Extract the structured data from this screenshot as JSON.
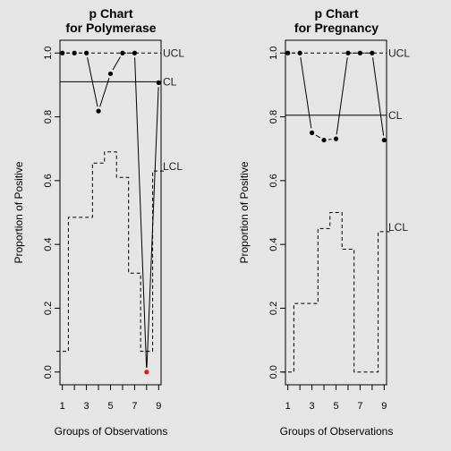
{
  "chart_data": [
    {
      "type": "line",
      "chart_kind": "p-chart",
      "title_line1": "p Chart",
      "title_line2": "for Polymerase",
      "xlabel": "Groups of Observations",
      "ylabel": "Proportion of Positive",
      "x_ticks": [
        1,
        3,
        5,
        7,
        9
      ],
      "y_ticks": [
        "0.0",
        "0.2",
        "0.4",
        "0.6",
        "0.8",
        "1.0"
      ],
      "xlim": [
        0.8,
        9.2
      ],
      "ylim": [
        -0.04,
        1.04
      ],
      "x": [
        1,
        2,
        3,
        4,
        5,
        6,
        7,
        8,
        9
      ],
      "p": [
        1.0,
        1.0,
        1.0,
        0.818,
        0.935,
        1.0,
        1.0,
        0.0,
        0.907
      ],
      "out_of_control": [
        8
      ],
      "CL": 0.91,
      "UCL": 1.0,
      "LCL": [
        0.065,
        0.485,
        0.485,
        0.655,
        0.69,
        0.61,
        0.31,
        0.065,
        0.63
      ],
      "labels": {
        "ucl": "UCL",
        "cl": "CL",
        "lcl": "LCL"
      },
      "colors": {
        "point": "#000000",
        "out_of_control": "#e0171b"
      }
    },
    {
      "type": "line",
      "chart_kind": "p-chart",
      "title_line1": "p Chart",
      "title_line2": "for Pregnancy",
      "xlabel": "Groups of Observations",
      "ylabel": "Proportion of Positive",
      "x_ticks": [
        1,
        3,
        5,
        7,
        9
      ],
      "y_ticks": [
        "0.0",
        "0.2",
        "0.4",
        "0.6",
        "0.8",
        "1.0"
      ],
      "xlim": [
        0.8,
        9.2
      ],
      "ylim": [
        -0.04,
        1.04
      ],
      "x": [
        1,
        2,
        3,
        4,
        5,
        6,
        7,
        8,
        9
      ],
      "p": [
        1.0,
        1.0,
        0.75,
        0.727,
        0.731,
        1.0,
        1.0,
        1.0,
        0.727
      ],
      "out_of_control": [],
      "CL": 0.805,
      "UCL": 1.0,
      "LCL": [
        0.0,
        0.215,
        0.215,
        0.45,
        0.5,
        0.385,
        0.0,
        0.0,
        0.44
      ],
      "labels": {
        "ucl": "UCL",
        "cl": "CL",
        "lcl": "LCL"
      },
      "colors": {
        "point": "#000000",
        "out_of_control": "#e0171b"
      }
    }
  ]
}
